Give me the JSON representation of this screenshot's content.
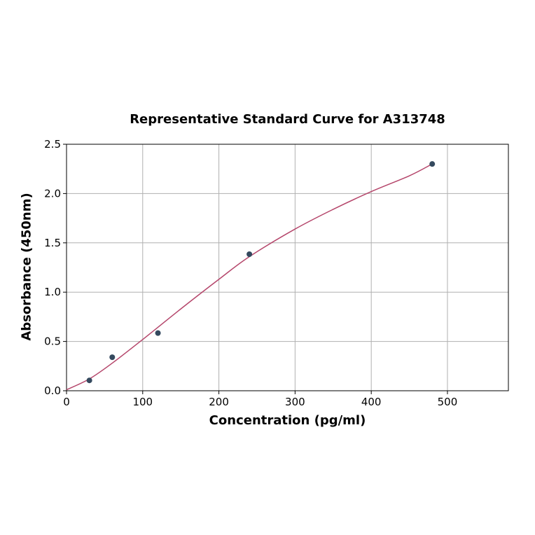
{
  "chart_data": {
    "type": "scatter",
    "title": "Representative Standard Curve for A313748",
    "xlabel": "Concentration (pg/ml)",
    "ylabel": "Absorbance (450nm)",
    "xlim": [
      0,
      580
    ],
    "ylim": [
      0,
      2.5
    ],
    "xticks": [
      0,
      100,
      200,
      300,
      400,
      500
    ],
    "yticks": [
      0.0,
      0.5,
      1.0,
      1.5,
      2.0,
      2.5
    ],
    "xtick_labels": [
      "0",
      "100",
      "200",
      "300",
      "400",
      "500"
    ],
    "ytick_labels": [
      "0.0",
      "0.5",
      "1.0",
      "1.5",
      "2.0",
      "2.5"
    ],
    "grid": true,
    "legend": "none",
    "series": [
      {
        "kind": "points",
        "color": "#34495e",
        "x": [
          30,
          60,
          120,
          240,
          480
        ],
        "y": [
          0.105,
          0.34,
          0.585,
          1.385,
          2.3
        ]
      },
      {
        "kind": "fitted-curve",
        "color": "#b5466b",
        "x": [
          0,
          30,
          60,
          100,
          150,
          200,
          240,
          300,
          350,
          400,
          450,
          480
        ],
        "y": [
          0.01,
          0.12,
          0.28,
          0.52,
          0.83,
          1.13,
          1.36,
          1.64,
          1.84,
          2.02,
          2.18,
          2.3
        ]
      }
    ]
  }
}
